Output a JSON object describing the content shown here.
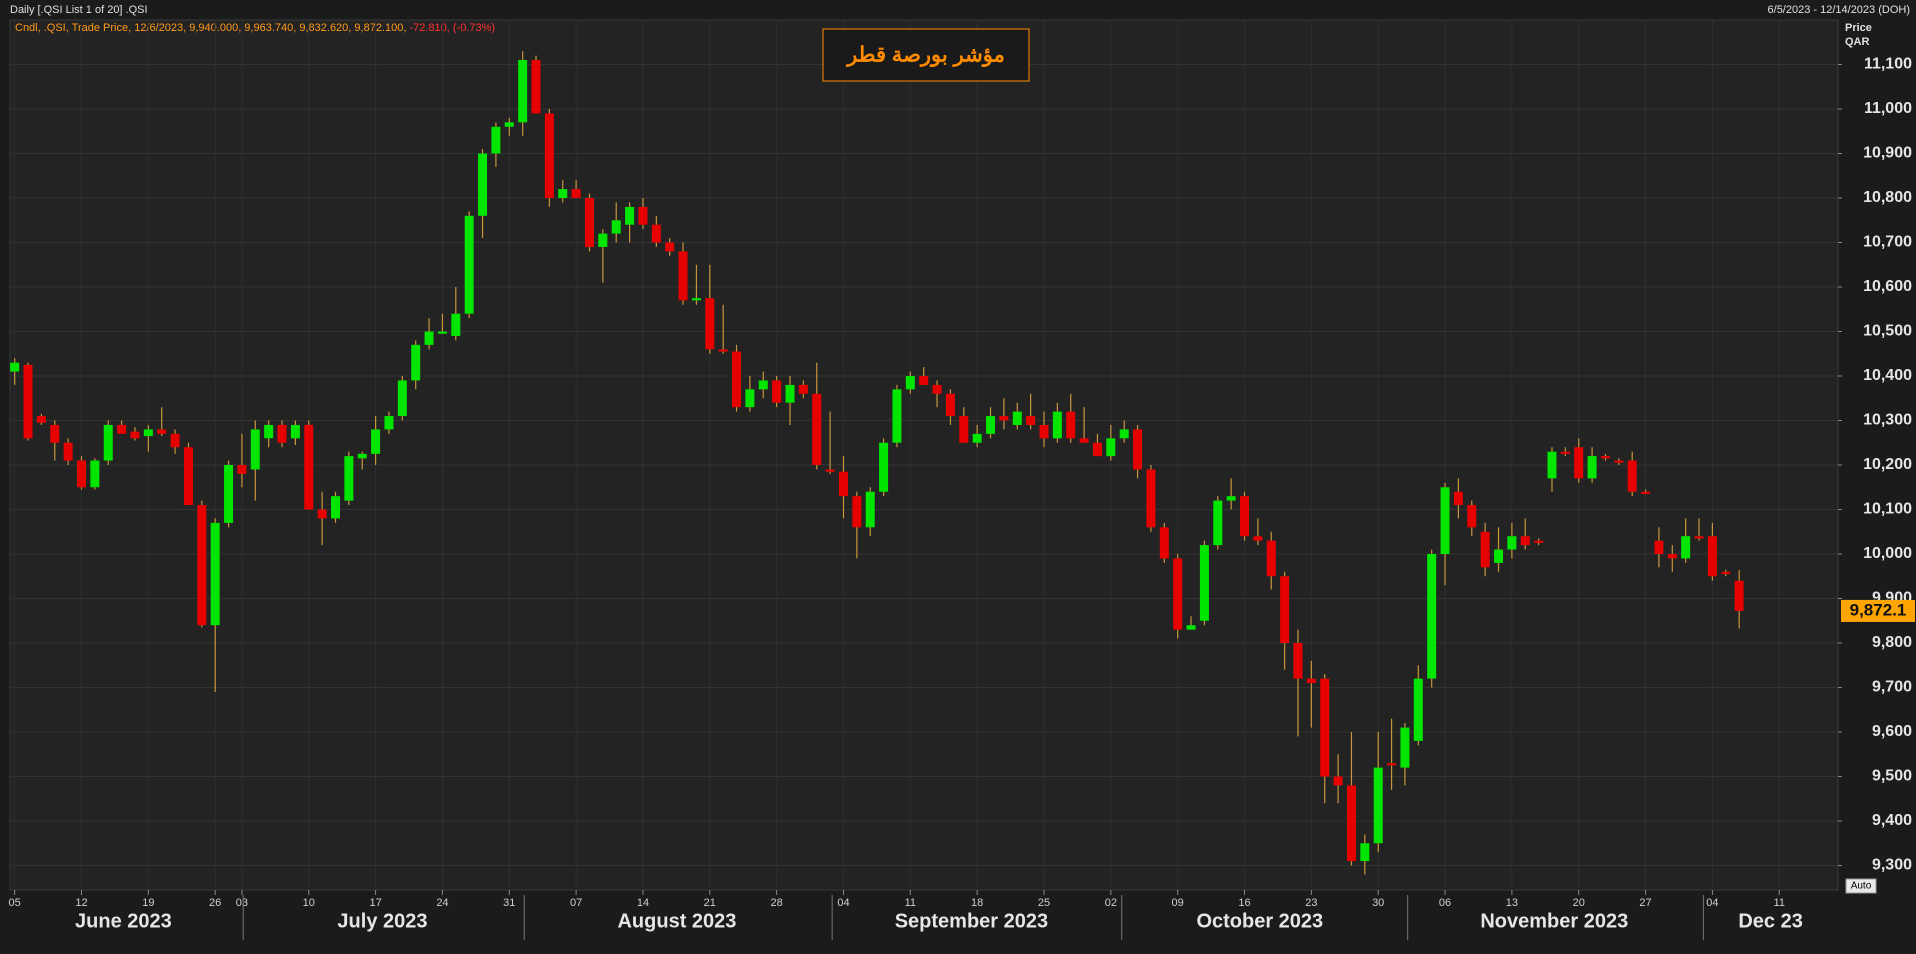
{
  "chart_data": {
    "type": "candlestick",
    "header": "Daily [.QSI List 1 of 20] .QSI",
    "date_range": "6/5/2023 - 12/14/2023 (DOH)",
    "legend_text": "Cndl, .QSI, Trade Price, 12/6/2023, 9,940.000, 9,963.740, 9,832.620, 9,872.100,",
    "legend_change": "-72.810, (-0.73%)",
    "title": "مؤشر بورصة قطر",
    "y_label": "Price",
    "y_unit": "QAR",
    "last_label": "9,872.1",
    "auto_button": "Auto",
    "up_color": "#00e600",
    "down_color": "#e60000",
    "wick_color": "#c8963c",
    "grid": true,
    "ylim": [
      9245,
      11200
    ],
    "yticks": [
      {
        "value": 9300,
        "label": "9,300"
      },
      {
        "value": 9400,
        "label": "9,400"
      },
      {
        "value": 9500,
        "label": "9,500"
      },
      {
        "value": 9600,
        "label": "9,600"
      },
      {
        "value": 9700,
        "label": "9,700"
      },
      {
        "value": 9800,
        "label": "9,800"
      },
      {
        "value": 9900,
        "label": "9,900"
      },
      {
        "value": 10000,
        "label": "10,000"
      },
      {
        "value": 10100,
        "label": "10,100"
      },
      {
        "value": 10200,
        "label": "10,200"
      },
      {
        "value": 10300,
        "label": "10,300"
      },
      {
        "value": 10400,
        "label": "10,400"
      },
      {
        "value": 10500,
        "label": "10,500"
      },
      {
        "value": 10600,
        "label": "10,600"
      },
      {
        "value": 10700,
        "label": "10,700"
      },
      {
        "value": 10800,
        "label": "10,800"
      },
      {
        "value": 10900,
        "label": "10,900"
      },
      {
        "value": 11000,
        "label": "11,000"
      },
      {
        "value": 11100,
        "label": "11,100"
      }
    ],
    "months": [
      "June 2023",
      "July 2023",
      "August 2023",
      "September 2023",
      "October 2023",
      "November 2023",
      "Dec 23"
    ],
    "categories": [
      "05",
      null,
      null,
      null,
      null,
      "12",
      null,
      null,
      null,
      null,
      "19",
      null,
      null,
      null,
      null,
      "26",
      null,
      "03",
      null,
      null,
      null,
      null,
      "10",
      null,
      null,
      null,
      null,
      "17",
      null,
      null,
      null,
      null,
      "24",
      null,
      null,
      null,
      null,
      "31",
      null,
      null,
      null,
      null,
      "07",
      null,
      null,
      null,
      null,
      "14",
      null,
      null,
      null,
      null,
      "21",
      null,
      null,
      null,
      null,
      "28",
      null,
      null,
      null,
      null,
      "04",
      null,
      null,
      null,
      null,
      "11",
      null,
      null,
      null,
      null,
      "18",
      null,
      null,
      null,
      null,
      "25",
      null,
      null,
      null,
      null,
      "02",
      null,
      null,
      null,
      null,
      "09",
      null,
      null,
      null,
      null,
      "16",
      null,
      null,
      null,
      null,
      "23",
      null,
      null,
      null,
      null,
      "30",
      null,
      null,
      null,
      null,
      "06",
      null,
      null,
      null,
      null,
      "13",
      null,
      null,
      null,
      null,
      "20",
      null,
      null,
      null,
      null,
      "27",
      null,
      null,
      null,
      null,
      "04",
      null,
      null,
      null,
      null,
      "11"
    ],
    "open": [
      10410,
      10425,
      10310,
      10290,
      10250,
      10210,
      10150,
      10210,
      10290,
      10275,
      10265,
      10280,
      10270,
      10240,
      10110,
      9840,
      10070,
      10200,
      10190,
      10260,
      10290,
      10260,
      10290,
      10100,
      10080,
      10120,
      10215,
      10225,
      10280,
      10310,
      10390,
      10470,
      10495,
      10490,
      10540,
      10760,
      10900,
      10960,
      10970,
      11110,
      10990,
      10800,
      10820,
      10800,
      10690,
      10720,
      10740,
      10780,
      10740,
      10700,
      10680,
      10570,
      10575,
      10460,
      10455,
      10330,
      10370,
      10390,
      10340,
      10380,
      10360,
      10190,
      10185,
      10130,
      10060,
      10140,
      10250,
      10370,
      10400,
      10380,
      10360,
      10310,
      10250,
      10270,
      10310,
      10290,
      10310,
      10290,
      10260,
      10320,
      10260,
      10250,
      10220,
      10260,
      10280,
      10190,
      10060,
      9990,
      9830,
      9850,
      10020,
      10120,
      10130,
      10040,
      10030,
      9950,
      9800,
      9720,
      9720,
      9500,
      9480,
      9310,
      9350,
      9530,
      9520,
      9580,
      9720,
      10000,
      10140,
      10110,
      10050,
      9980,
      10010,
      10040,
      10030,
      10170,
      10230,
      10240,
      10170,
      10220,
      10210,
      10210,
      10140,
      10030,
      10000,
      9990,
      10040,
      10040,
      9960,
      9940,
      null,
      null,
      null
    ],
    "high": [
      10440,
      10430,
      10315,
      10300,
      10260,
      10220,
      10215,
      10300,
      10300,
      10285,
      10290,
      10330,
      10280,
      10250,
      10120,
      10080,
      10210,
      10270,
      10300,
      10300,
      10300,
      10300,
      10300,
      10140,
      10140,
      10230,
      10230,
      10310,
      10320,
      10400,
      10480,
      10530,
      10540,
      10600,
      10770,
      10910,
      10970,
      10980,
      11130,
      11120,
      11000,
      10840,
      10840,
      10810,
      10730,
      10790,
      10790,
      10800,
      10760,
      10710,
      10700,
      10650,
      10650,
      10560,
      10470,
      10400,
      10410,
      10400,
      10400,
      10390,
      10430,
      10320,
      10220,
      10140,
      10150,
      10260,
      10380,
      10410,
      10420,
      10390,
      10370,
      10330,
      10290,
      10330,
      10350,
      10340,
      10360,
      10320,
      10340,
      10360,
      10330,
      10270,
      10290,
      10300,
      10290,
      10200,
      10070,
      10000,
      9860,
      10030,
      10130,
      10170,
      10140,
      10080,
      10050,
      9960,
      9830,
      9760,
      9730,
      9550,
      9600,
      9370,
      9600,
      9630,
      9620,
      9750,
      10010,
      10160,
      10170,
      10120,
      10070,
      10060,
      10070,
      10080,
      10035,
      10240,
      10240,
      10260,
      10240,
      10225,
      10215,
      10230,
      10145,
      10060,
      10020,
      10080,
      10080,
      10070,
      9965,
      9963.74,
      null,
      null,
      null
    ],
    "low": [
      10380,
      10255,
      10290,
      10210,
      10200,
      10145,
      10145,
      10200,
      10270,
      10255,
      10230,
      10265,
      10225,
      10110,
      9835,
      9690,
      10060,
      10150,
      10120,
      10240,
      10240,
      10245,
      10100,
      10020,
      10070,
      10110,
      10190,
      10200,
      10270,
      10300,
      10370,
      10460,
      10495,
      10480,
      10530,
      10710,
      10870,
      10940,
      10940,
      10990,
      10780,
      10790,
      10800,
      10680,
      10610,
      10700,
      10700,
      10730,
      10690,
      10670,
      10560,
      10560,
      10450,
      10450,
      10320,
      10320,
      10350,
      10330,
      10290,
      10350,
      10190,
      10180,
      10080,
      9990,
      10040,
      10130,
      10240,
      10360,
      10380,
      10330,
      10290,
      10250,
      10240,
      10260,
      10280,
      10280,
      10280,
      10240,
      10250,
      10250,
      10250,
      10220,
      10210,
      10250,
      10170,
      10050,
      9980,
      9810,
      9830,
      9840,
      10010,
      10100,
      10030,
      10020,
      9920,
      9740,
      9590,
      9610,
      9440,
      9440,
      9300,
      9280,
      9330,
      9470,
      9480,
      9570,
      9700,
      9930,
      10080,
      10040,
      9950,
      9960,
      9990,
      10010,
      10020,
      10140,
      10220,
      10160,
      10160,
      10210,
      10200,
      10130,
      10135,
      9970,
      9960,
      9980,
      10030,
      9940,
      9950,
      9832.62,
      null,
      null,
      null
    ],
    "close": [
      10430,
      10260,
      10295,
      10250,
      10210,
      10150,
      10210,
      10290,
      10270,
      10260,
      10280,
      10270,
      10240,
      10110,
      9840,
      10070,
      10200,
      10180,
      10280,
      10290,
      10250,
      10290,
      10100,
      10080,
      10130,
      10220,
      10225,
      10280,
      10310,
      10390,
      10470,
      10500,
      10500,
      10540,
      10760,
      10900,
      10960,
      10970,
      11110,
      10990,
      10800,
      10820,
      10800,
      10690,
      10720,
      10750,
      10780,
      10740,
      10700,
      10680,
      10570,
      10575,
      10460,
      10455,
      10330,
      10370,
      10390,
      10340,
      10380,
      10360,
      10200,
      10185,
      10130,
      10060,
      10140,
      10250,
      10370,
      10400,
      10380,
      10360,
      10310,
      10250,
      10270,
      10310,
      10300,
      10320,
      10290,
      10260,
      10320,
      10260,
      10250,
      10220,
      10260,
      10280,
      10190,
      10060,
      9990,
      9830,
      9840,
      10020,
      10120,
      10130,
      10040,
      10030,
      9950,
      9800,
      9720,
      9710,
      9500,
      9480,
      9310,
      9350,
      9520,
      9525,
      9610,
      9720,
      10000,
      10150,
      10110,
      10060,
      9970,
      10010,
      10040,
      10020,
      10025,
      10230,
      10225,
      10170,
      10220,
      10215,
      10205,
      10140,
      10135,
      10000,
      9990,
      10040,
      10035,
      9950,
      9955,
      9872.1,
      null,
      null,
      null
    ]
  }
}
